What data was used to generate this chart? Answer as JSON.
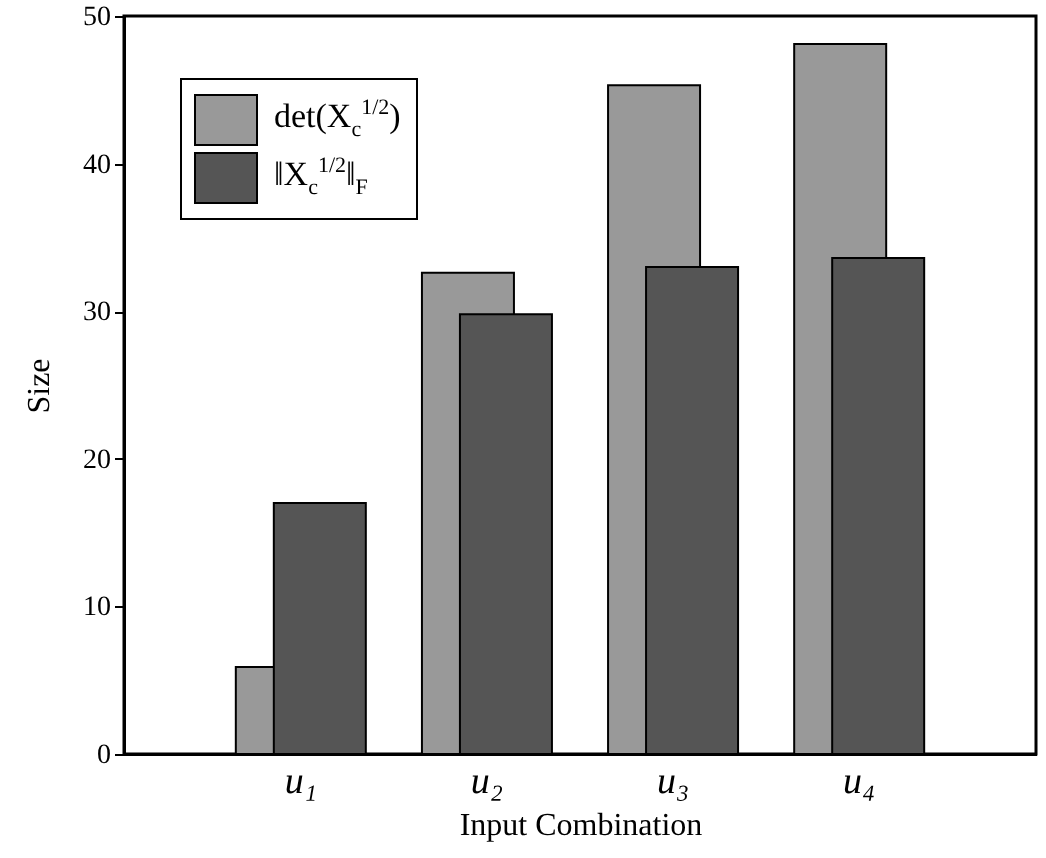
{
  "chart_data": {
    "type": "bar",
    "categories": [
      "u₁",
      "u₂",
      "u₃",
      "u₄"
    ],
    "series": [
      {
        "name": "det(X$_{c}$$^{1/2}$)",
        "color": "#999999",
        "values": [
          5.9,
          32.6,
          45.3,
          48.1
        ]
      },
      {
        "name": "‖X$_{c}$$^{1/2}$‖$_{F}$",
        "color": "#555555",
        "values": [
          17.0,
          29.8,
          33.0,
          33.6
        ]
      }
    ],
    "xlabel": "Input Combination",
    "ylabel": "Size",
    "ylim": [
      0,
      50
    ],
    "yticks": [
      0,
      10,
      20,
      30,
      40,
      50
    ],
    "legend": "top left"
  }
}
